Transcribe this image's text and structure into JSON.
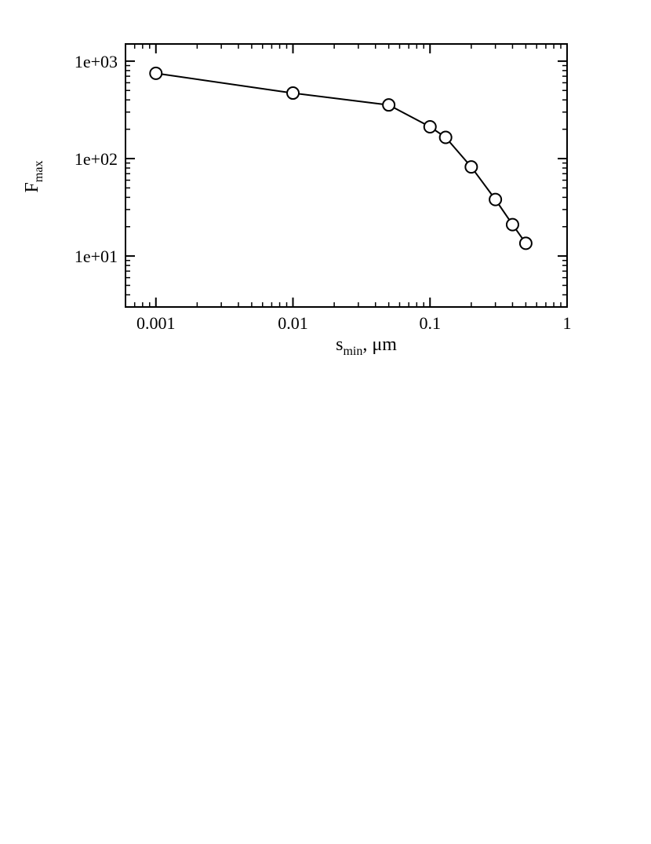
{
  "chart_data": {
    "type": "line",
    "title": "",
    "xlabel": {
      "main": "s",
      "sub": "min",
      "suffix": ", μm"
    },
    "ylabel": {
      "main": "F",
      "sub": "max"
    },
    "xscale": "log",
    "yscale": "log",
    "xlim": [
      0.0006,
      1
    ],
    "ylim": [
      3,
      1500
    ],
    "grid": false,
    "legend": "none",
    "x_ticks": [
      {
        "value": 0.001,
        "label": "0.001"
      },
      {
        "value": 0.01,
        "label": "0.01"
      },
      {
        "value": 0.1,
        "label": "0.1"
      },
      {
        "value": 1,
        "label": "1"
      }
    ],
    "y_ticks": [
      {
        "value": 10,
        "label": "1e+01"
      },
      {
        "value": 100,
        "label": "1e+02"
      },
      {
        "value": 1000,
        "label": "1e+03"
      }
    ],
    "series": [
      {
        "marker": "open-circle",
        "color": "#000000",
        "x": [
          0.001,
          0.01,
          0.05,
          0.1,
          0.13,
          0.2,
          0.3,
          0.4,
          0.5
        ],
        "y": [
          750,
          470,
          355,
          212,
          165,
          82,
          38,
          21,
          13.5
        ]
      }
    ]
  }
}
